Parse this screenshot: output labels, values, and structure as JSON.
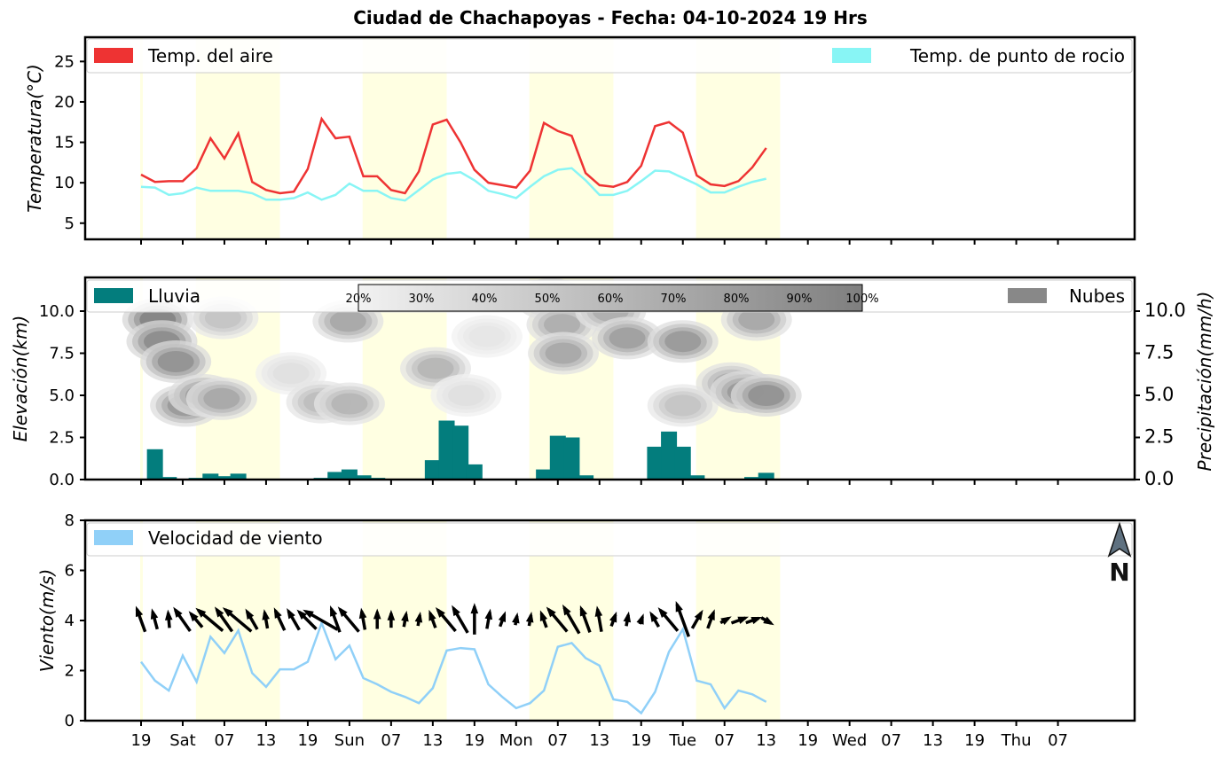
{
  "title": "Ciudad de Chachapoyas   -   Fecha: 04-10-2024 19 Hrs",
  "x_ticks": [
    "19",
    "Sat",
    "07",
    "13",
    "19",
    "Sun",
    "07",
    "13",
    "19",
    "Mon",
    "07",
    "13",
    "19",
    "Tue",
    "07",
    "13",
    "19",
    "Wed",
    "07",
    "13",
    "19",
    "Thu",
    "07"
  ],
  "colors": {
    "air_temp": "#ee3333",
    "dew_point": "#88f5f5",
    "rain": "#037d7d",
    "clouds": "#888888",
    "wind": "#90d0f8",
    "daylight_band": "#ffffe2"
  },
  "chart_data": [
    {
      "type": "line",
      "name": "temperature",
      "ylabel": "Temperatura(°C)",
      "ylim": [
        3,
        28
      ],
      "yticks": [
        "5",
        "10",
        "15",
        "20",
        "25"
      ],
      "series": [
        {
          "name": "Temp. del aire",
          "values": [
            11.0,
            10.1,
            10.2,
            10.2,
            11.8,
            15.5,
            13.0,
            16.1,
            10.1,
            9.1,
            8.7,
            8.9,
            11.7,
            17.9,
            15.5,
            15.7,
            10.8,
            10.8,
            9.1,
            8.7,
            11.4,
            17.2,
            17.8,
            15.0,
            11.6,
            10.0,
            9.7,
            9.4,
            11.5,
            17.4,
            16.4,
            15.8,
            11.2,
            9.7,
            9.5,
            10.1,
            12.1,
            17.0,
            17.5,
            16.2,
            10.9,
            9.8,
            9.6,
            10.2,
            11.9,
            14.3
          ]
        },
        {
          "name": "Temp. de punto de rocio",
          "values": [
            9.5,
            9.4,
            8.5,
            8.7,
            9.4,
            9.0,
            9.0,
            9.0,
            8.7,
            7.9,
            7.9,
            8.1,
            8.8,
            7.9,
            8.5,
            9.9,
            9.0,
            9.0,
            8.1,
            7.8,
            9.1,
            10.4,
            11.1,
            11.3,
            10.3,
            9.0,
            8.6,
            8.1,
            9.5,
            10.8,
            11.6,
            11.8,
            10.3,
            8.5,
            8.5,
            9.0,
            10.2,
            11.5,
            11.4,
            10.6,
            9.8,
            8.8,
            8.8,
            9.5,
            10.1,
            10.5
          ]
        }
      ]
    },
    {
      "type": "bar",
      "name": "precipitation",
      "ylabel_left": "Elevación(km)",
      "ylabel_right": "Precipitación(mm/h)",
      "ylim": [
        0,
        12
      ],
      "yticks_left": [
        "0.0",
        "2.5",
        "5.0",
        "7.5",
        "10.0"
      ],
      "yticks_right": [
        "0.0",
        "2.5",
        "5.0",
        "7.5",
        "10.0"
      ],
      "legend_rain": "Lluvia",
      "legend_clouds": "Nubes",
      "colorbar_labels": [
        "20%",
        "30%",
        "40%",
        "50%",
        "60%",
        "70%",
        "80%",
        "90%",
        "100%"
      ],
      "values": [
        0.0,
        1.8,
        0.15,
        0.05,
        0.1,
        0.35,
        0.2,
        0.35,
        0.05,
        0.0,
        0.0,
        0.0,
        0.0,
        0.1,
        0.45,
        0.6,
        0.25,
        0.1,
        0.0,
        0.0,
        0.0,
        1.15,
        3.5,
        3.2,
        0.9,
        0.0,
        0.0,
        0.0,
        0.0,
        0.6,
        2.6,
        2.5,
        0.25,
        0.0,
        0.0,
        0.0,
        0.05,
        1.95,
        2.85,
        1.95,
        0.25,
        0.0,
        0.0,
        0.0,
        0.15,
        0.4
      ],
      "clouds": [
        {
          "x": 1.2,
          "elev": 9.5,
          "cover": 100
        },
        {
          "x": 1.5,
          "elev": 8.2,
          "cover": 95
        },
        {
          "x": 2.5,
          "elev": 7.0,
          "cover": 90
        },
        {
          "x": 3.2,
          "elev": 4.4,
          "cover": 85
        },
        {
          "x": 4.5,
          "elev": 5.0,
          "cover": 80
        },
        {
          "x": 5.8,
          "elev": 4.8,
          "cover": 75
        },
        {
          "x": 5.9,
          "elev": 9.6,
          "cover": 55
        },
        {
          "x": 10.8,
          "elev": 6.3,
          "cover": 35
        },
        {
          "x": 13.0,
          "elev": 4.6,
          "cover": 60
        },
        {
          "x": 15.0,
          "elev": 4.5,
          "cover": 65
        },
        {
          "x": 14.9,
          "elev": 9.4,
          "cover": 75
        },
        {
          "x": 21.2,
          "elev": 6.6,
          "cover": 65
        },
        {
          "x": 23.4,
          "elev": 5.0,
          "cover": 35
        },
        {
          "x": 24.9,
          "elev": 8.5,
          "cover": 30
        },
        {
          "x": 29.5,
          "elev": 10.7,
          "cover": 70
        },
        {
          "x": 30.3,
          "elev": 9.2,
          "cover": 70
        },
        {
          "x": 30.4,
          "elev": 7.5,
          "cover": 75
        },
        {
          "x": 33.8,
          "elev": 10.0,
          "cover": 70
        },
        {
          "x": 35.0,
          "elev": 8.4,
          "cover": 80
        },
        {
          "x": 39.0,
          "elev": 8.2,
          "cover": 85
        },
        {
          "x": 39.0,
          "elev": 4.4,
          "cover": 55
        },
        {
          "x": 42.5,
          "elev": 5.7,
          "cover": 70
        },
        {
          "x": 43.5,
          "elev": 5.2,
          "cover": 85
        },
        {
          "x": 44.3,
          "elev": 9.5,
          "cover": 75
        },
        {
          "x": 45.0,
          "elev": 5.0,
          "cover": 90
        }
      ]
    },
    {
      "type": "line",
      "name": "wind",
      "ylabel": "Viento(m/s)",
      "ylim": [
        0,
        8
      ],
      "yticks": [
        "0",
        "2",
        "4",
        "6",
        "8"
      ],
      "series": [
        {
          "name": "Velocidad de viento",
          "values": [
            2.35,
            1.6,
            1.2,
            2.6,
            1.55,
            3.35,
            2.7,
            3.6,
            1.9,
            1.35,
            2.05,
            2.05,
            2.35,
            3.9,
            2.45,
            3.0,
            1.7,
            1.45,
            1.15,
            0.95,
            0.7,
            1.3,
            2.8,
            2.9,
            2.85,
            1.45,
            0.95,
            0.5,
            0.7,
            1.2,
            2.95,
            3.1,
            2.5,
            2.2,
            0.85,
            0.75,
            0.3,
            1.15,
            2.75,
            3.65,
            1.6,
            1.45,
            0.5,
            1.2,
            1.05,
            0.75
          ]
        }
      ],
      "wind_direction_deg": [
        110,
        105,
        95,
        125,
        130,
        140,
        125,
        140,
        120,
        100,
        115,
        120,
        135,
        150,
        110,
        130,
        100,
        90,
        90,
        80,
        80,
        110,
        130,
        120,
        90,
        80,
        70,
        80,
        80,
        110,
        130,
        120,
        110,
        100,
        70,
        80,
        70,
        120,
        130,
        110,
        60,
        70,
        30,
        20,
        20,
        330
      ],
      "north_label": "N"
    }
  ]
}
